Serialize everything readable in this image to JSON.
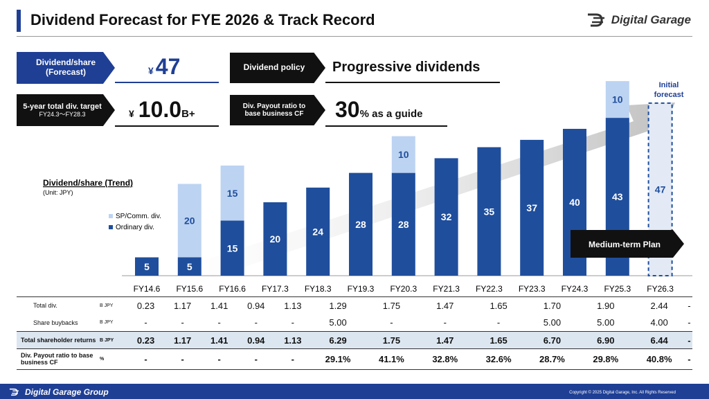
{
  "title": "Dividend Forecast for FYE 2026 & Track Record",
  "logo_text": "Digital Garage",
  "footer": {
    "logo_text": "Digital Garage Group",
    "copyright": "Copyright © 2025 Digital Garage, Inc. All Rights Reserved"
  },
  "colors": {
    "ordinary": "#1f4e9c",
    "special": "#bcd3f2",
    "accent": "#1f3f95"
  },
  "kpis": {
    "dps_label_1": "Dividend/share",
    "dps_label_2": "(Forecast)",
    "dps_yen": "¥",
    "dps_value": "47",
    "target_label": "5-year total div. target",
    "target_sub": "FY24.3～FY28.3",
    "target_yen": "¥",
    "target_value": "10.0",
    "target_suffix": "B+",
    "policy_label": "Dividend policy",
    "policy_value": "Progressive dividends",
    "payout_label_1": "Div. Payout ratio to",
    "payout_label_2": "base business CF",
    "payout_value": "30",
    "payout_suffix": "% as a guide"
  },
  "chart_labels": {
    "trend_title": "Dividend/share (Trend)",
    "unit": "(Unit: JPY)",
    "legend_special": "SP/Comm. div.",
    "legend_ordinary": "Ordinary div.",
    "initial_forecast_1": "Initial",
    "initial_forecast_2": "forecast",
    "medium_term_plan": "Medium-term Plan"
  },
  "chart_data": {
    "type": "bar",
    "stacked": true,
    "categories": [
      "FY14.6",
      "FY15.6",
      "FY16.6",
      "FY17.3",
      "FY18.3",
      "FY19.3",
      "FY20.3",
      "FY21.3",
      "FY22.3",
      "FY23.3",
      "FY24.3",
      "FY25.3",
      "FY26.3"
    ],
    "series": [
      {
        "name": "Ordinary div.",
        "values": [
          5,
          5,
          15,
          20,
          24,
          28,
          28,
          32,
          35,
          37,
          40,
          43,
          47
        ]
      },
      {
        "name": "SP/Comm. div.",
        "values": [
          0,
          20,
          15,
          0,
          0,
          0,
          10,
          0,
          0,
          0,
          0,
          10,
          0
        ]
      }
    ],
    "title": "Dividend/share (Trend)",
    "ylabel": "(Unit: JPY)",
    "legend": "left"
  },
  "table": {
    "rows": [
      {
        "label": "Total div.",
        "unit": "B JPY",
        "values": [
          "0.23",
          "1.17",
          "1.41",
          "0.94",
          "1.13",
          "1.29",
          "1.75",
          "1.47",
          "1.65",
          "1.70",
          "1.90",
          "2.44",
          "-"
        ]
      },
      {
        "label": "Share buybacks",
        "unit": "B JPY",
        "values": [
          "-",
          "-",
          "-",
          "-",
          "-",
          "5.00",
          "-",
          "-",
          "-",
          "5.00",
          "5.00",
          "4.00",
          "-"
        ]
      },
      {
        "label": "Total shareholder returns",
        "unit": "B JPY",
        "values": [
          "0.23",
          "1.17",
          "1.41",
          "0.94",
          "1.13",
          "6.29",
          "1.75",
          "1.47",
          "1.65",
          "6.70",
          "6.90",
          "6.44",
          "-"
        ]
      },
      {
        "label": "Div. Payout ratio to base business CF",
        "unit": "%",
        "values": [
          "-",
          "-",
          "-",
          "-",
          "-",
          "29.1%",
          "41.1%",
          "32.8%",
          "32.6%",
          "28.7%",
          "29.8%",
          "40.8%",
          "-"
        ]
      }
    ]
  }
}
